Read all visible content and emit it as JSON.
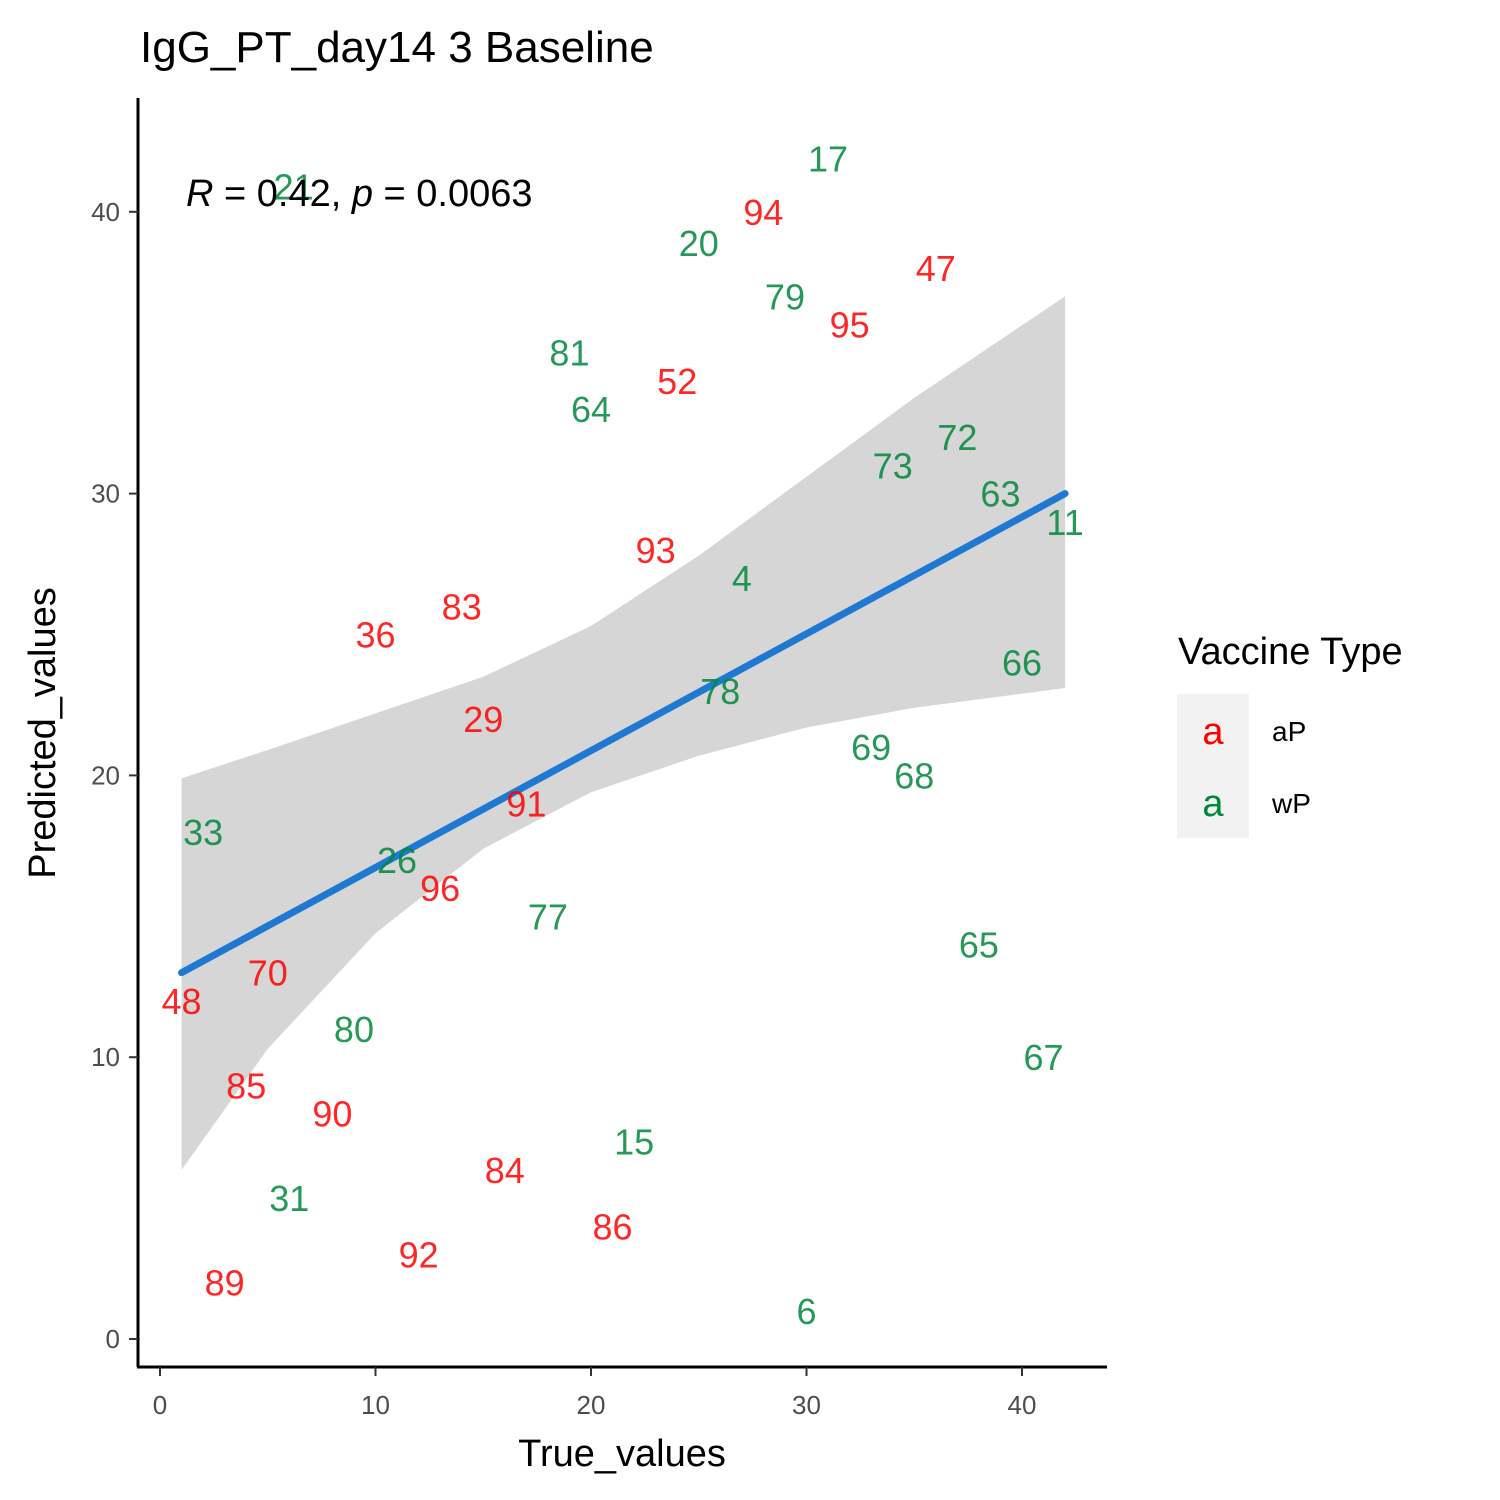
{
  "chart_data": {
    "type": "scatter",
    "title": "IgG_PT_day14 3 Baseline",
    "xlabel": "True_values",
    "ylabel": "Predicted_values",
    "xlim": [
      -1,
      44
    ],
    "ylim": [
      -1,
      44
    ],
    "x_ticks": [
      0,
      10,
      20,
      30,
      40
    ],
    "y_ticks": [
      0,
      10,
      20,
      30,
      40
    ],
    "grid": false,
    "annotation": {
      "r_symbol": "R",
      "r_text": " = 0.42, ",
      "p_symbol": "p",
      "p_text": " = 0.0063"
    },
    "legend": {
      "title": "Vaccine Type",
      "position": "right",
      "key_glyph": "a",
      "entries": [
        {
          "name": "aP",
          "color": "#ff0000"
        },
        {
          "name": "wP",
          "color": "#00873c"
        }
      ]
    },
    "regression": {
      "color": "#1f78d1",
      "band_color": "#d6d6d6",
      "line": [
        [
          1,
          13.0
        ],
        [
          42,
          30.0
        ]
      ],
      "band": [
        {
          "x": 1,
          "lo": 6.0,
          "hi": 19.9
        },
        {
          "x": 5,
          "lo": 10.3,
          "hi": 20.9
        },
        {
          "x": 10,
          "lo": 14.4,
          "hi": 22.2
        },
        {
          "x": 15,
          "lo": 17.4,
          "hi": 23.5
        },
        {
          "x": 20,
          "lo": 19.4,
          "hi": 25.3
        },
        {
          "x": 25,
          "lo": 20.7,
          "hi": 27.8
        },
        {
          "x": 30,
          "lo": 21.7,
          "hi": 30.6
        },
        {
          "x": 35,
          "lo": 22.4,
          "hi": 33.4
        },
        {
          "x": 42,
          "lo": 23.1,
          "hi": 37.0
        }
      ]
    },
    "points": [
      {
        "label": "17",
        "x": 31,
        "y": 41.9,
        "group": "wP"
      },
      {
        "label": "21",
        "x": 6.2,
        "y": 40.9,
        "group": "wP"
      },
      {
        "label": "94",
        "x": 28,
        "y": 40.0,
        "group": "aP"
      },
      {
        "label": "20",
        "x": 25,
        "y": 38.9,
        "group": "wP"
      },
      {
        "label": "47",
        "x": 36,
        "y": 38.0,
        "group": "aP"
      },
      {
        "label": "79",
        "x": 29,
        "y": 37.0,
        "group": "wP"
      },
      {
        "label": "95",
        "x": 32,
        "y": 36.0,
        "group": "aP"
      },
      {
        "label": "81",
        "x": 19,
        "y": 35.0,
        "group": "wP"
      },
      {
        "label": "52",
        "x": 24,
        "y": 34.0,
        "group": "aP"
      },
      {
        "label": "64",
        "x": 20,
        "y": 33.0,
        "group": "wP"
      },
      {
        "label": "72",
        "x": 37,
        "y": 32.0,
        "group": "wP"
      },
      {
        "label": "73",
        "x": 34,
        "y": 31.0,
        "group": "wP"
      },
      {
        "label": "63",
        "x": 39,
        "y": 30.0,
        "group": "wP"
      },
      {
        "label": "11",
        "x": 42,
        "y": 29.0,
        "group": "wP"
      },
      {
        "label": "93",
        "x": 23,
        "y": 28.0,
        "group": "aP"
      },
      {
        "label": "4",
        "x": 27,
        "y": 27.0,
        "group": "wP"
      },
      {
        "label": "83",
        "x": 14,
        "y": 26.0,
        "group": "aP"
      },
      {
        "label": "36",
        "x": 10,
        "y": 25.0,
        "group": "aP"
      },
      {
        "label": "66",
        "x": 40,
        "y": 24.0,
        "group": "wP"
      },
      {
        "label": "78",
        "x": 26,
        "y": 23.0,
        "group": "wP"
      },
      {
        "label": "29",
        "x": 15,
        "y": 22.0,
        "group": "aP"
      },
      {
        "label": "69",
        "x": 33,
        "y": 21.0,
        "group": "wP"
      },
      {
        "label": "68",
        "x": 35,
        "y": 20.0,
        "group": "wP"
      },
      {
        "label": "91",
        "x": 17,
        "y": 19.0,
        "group": "aP"
      },
      {
        "label": "33",
        "x": 2,
        "y": 18.0,
        "group": "wP"
      },
      {
        "label": "26",
        "x": 11,
        "y": 17.0,
        "group": "wP"
      },
      {
        "label": "96",
        "x": 13,
        "y": 16.0,
        "group": "aP"
      },
      {
        "label": "77",
        "x": 18,
        "y": 15.0,
        "group": "wP"
      },
      {
        "label": "65",
        "x": 38,
        "y": 14.0,
        "group": "wP"
      },
      {
        "label": "70",
        "x": 5,
        "y": 13.0,
        "group": "aP"
      },
      {
        "label": "48",
        "x": 1,
        "y": 12.0,
        "group": "aP"
      },
      {
        "label": "80",
        "x": 9,
        "y": 11.0,
        "group": "wP"
      },
      {
        "label": "67",
        "x": 41,
        "y": 10.0,
        "group": "wP"
      },
      {
        "label": "85",
        "x": 4,
        "y": 9.0,
        "group": "aP"
      },
      {
        "label": "90",
        "x": 8,
        "y": 8.0,
        "group": "aP"
      },
      {
        "label": "15",
        "x": 22,
        "y": 7.0,
        "group": "wP"
      },
      {
        "label": "84",
        "x": 16,
        "y": 6.0,
        "group": "aP"
      },
      {
        "label": "31",
        "x": 6,
        "y": 5.0,
        "group": "wP"
      },
      {
        "label": "86",
        "x": 21,
        "y": 4.0,
        "group": "aP"
      },
      {
        "label": "92",
        "x": 12,
        "y": 3.0,
        "group": "aP"
      },
      {
        "label": "89",
        "x": 3,
        "y": 2.0,
        "group": "aP"
      },
      {
        "label": "6",
        "x": 30,
        "y": 1.0,
        "group": "wP"
      }
    ]
  }
}
